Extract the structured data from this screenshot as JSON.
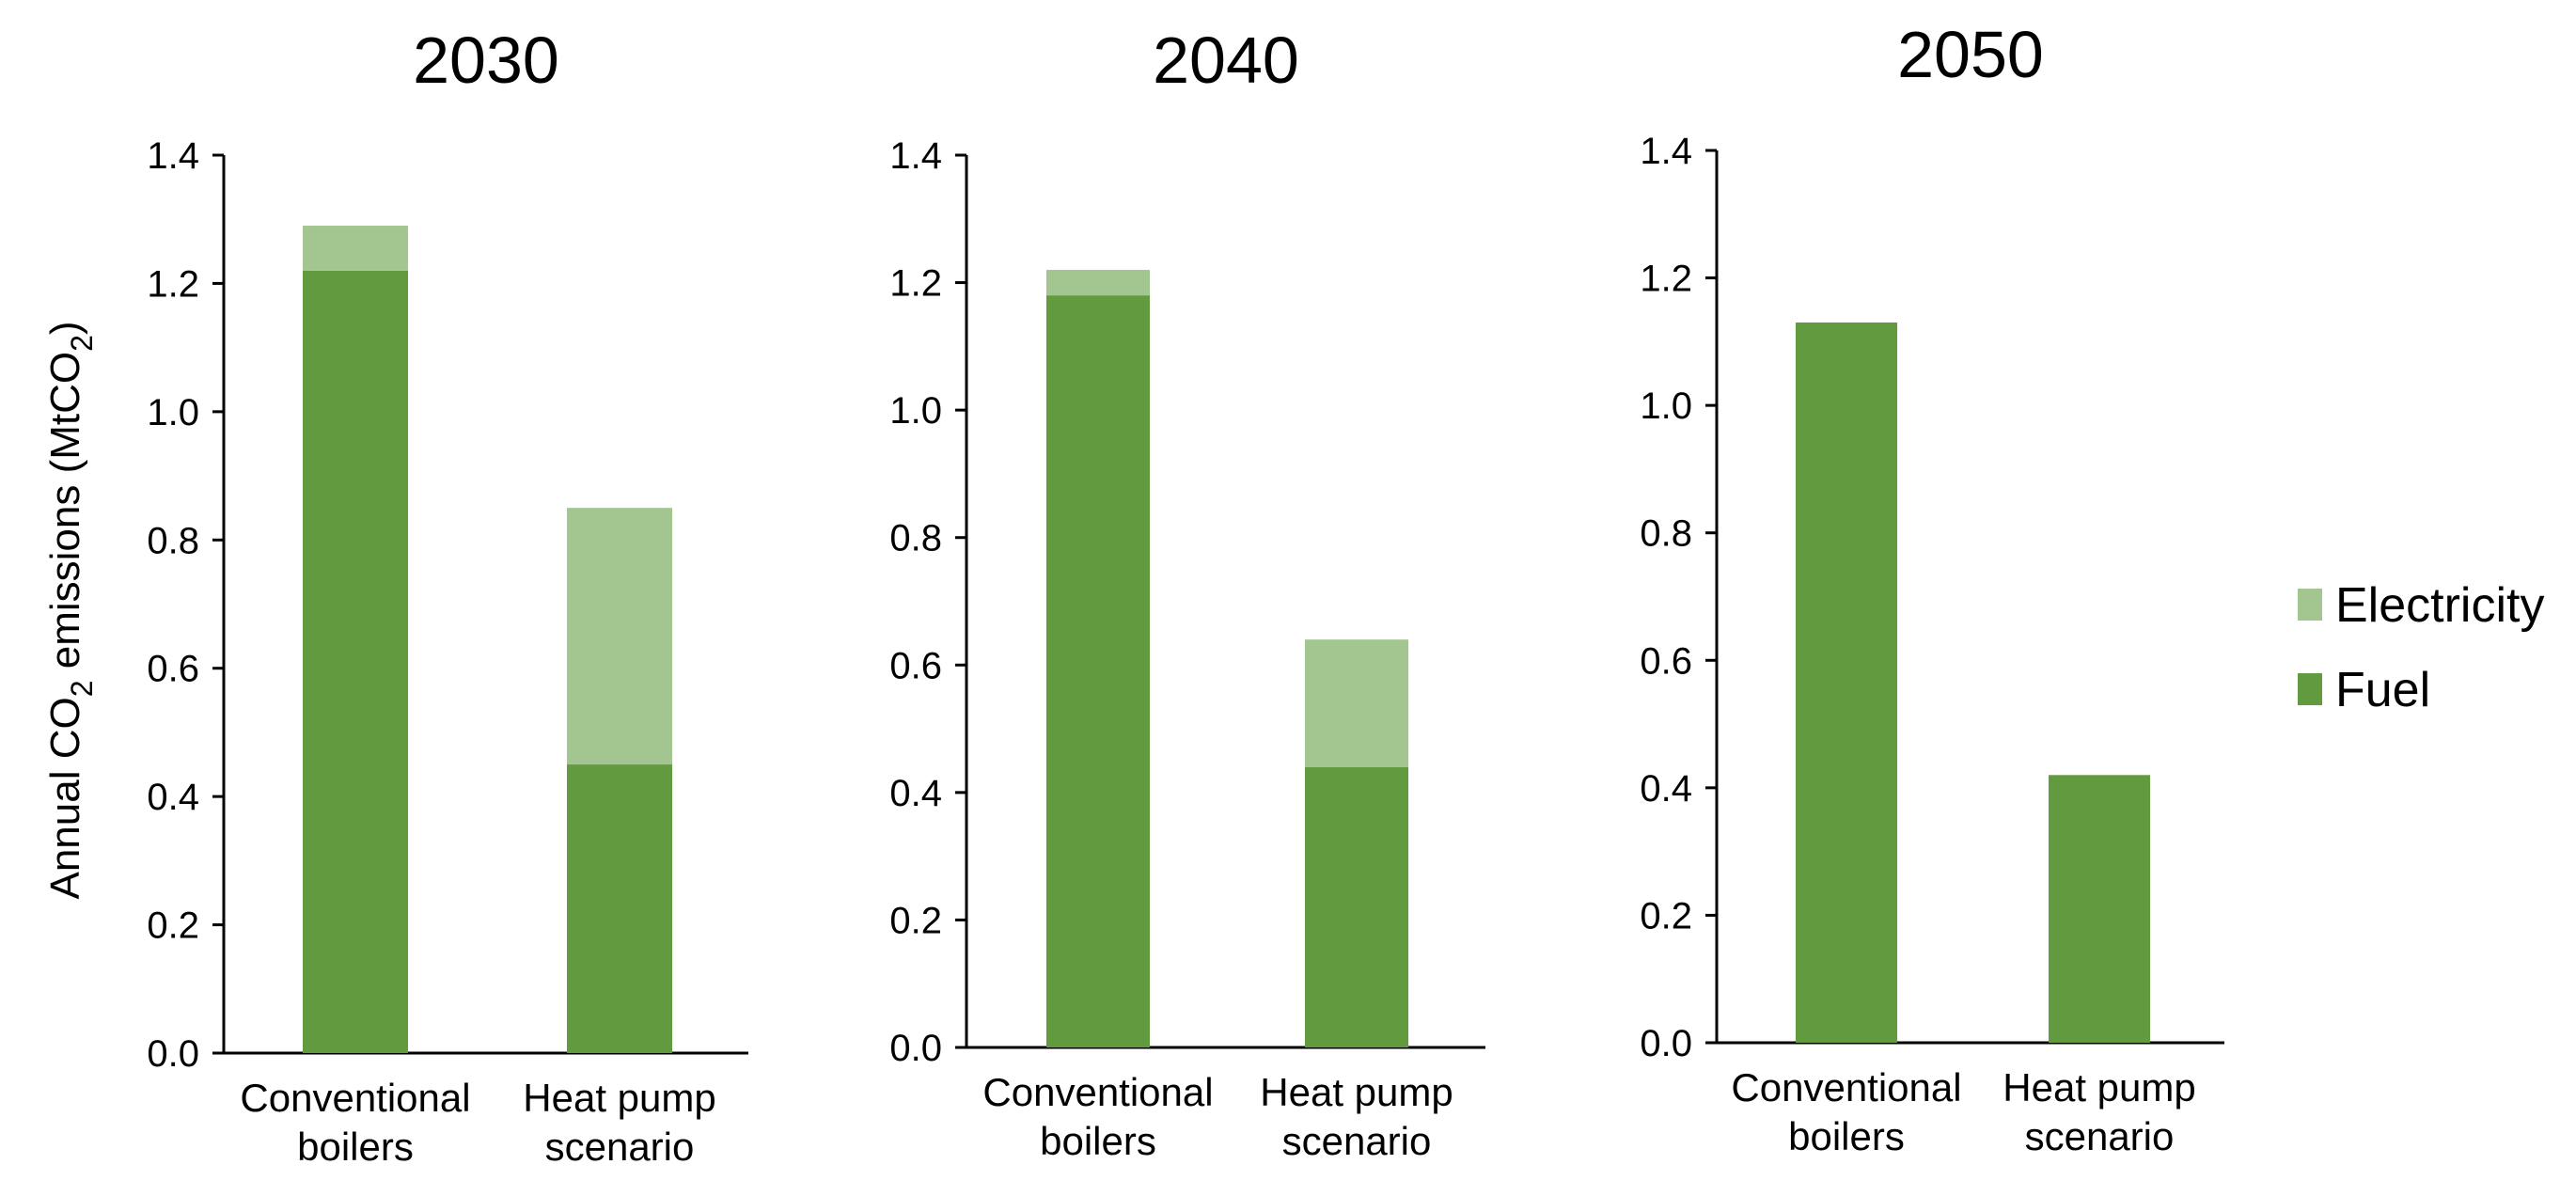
{
  "colors": {
    "fuel": "#629a3f",
    "electricity": "#a3c690",
    "axis": "#000000"
  },
  "y_axis_label": {
    "prefix": "Annual CO",
    "sub": "2",
    "middle": " emissions (MtCO",
    "sub2": "2",
    "suffix": ")"
  },
  "legend": {
    "electricity": "Electricity",
    "fuel": "Fuel"
  },
  "chart_data": [
    {
      "type": "bar",
      "stacked": true,
      "title": "2030",
      "categories": [
        [
          "Conventional",
          "boilers"
        ],
        [
          "Heat pump",
          "scenario"
        ]
      ],
      "ylim": [
        0,
        1.4
      ],
      "yticks": [
        "0.0",
        "0.2",
        "0.4",
        "0.6",
        "0.8",
        "1.0",
        "1.2",
        "1.4"
      ],
      "series": [
        {
          "name": "Fuel",
          "values": [
            1.22,
            0.45
          ]
        },
        {
          "name": "Electricity",
          "values": [
            0.07,
            0.4
          ]
        }
      ]
    },
    {
      "type": "bar",
      "stacked": true,
      "title": "2040",
      "categories": [
        [
          "Conventional",
          "boilers"
        ],
        [
          "Heat pump",
          "scenario"
        ]
      ],
      "ylim": [
        0,
        1.4
      ],
      "yticks": [
        "0.0",
        "0.2",
        "0.4",
        "0.6",
        "0.8",
        "1.0",
        "1.2",
        "1.4"
      ],
      "series": [
        {
          "name": "Fuel",
          "values": [
            1.18,
            0.44
          ]
        },
        {
          "name": "Electricity",
          "values": [
            0.04,
            0.2
          ]
        }
      ]
    },
    {
      "type": "bar",
      "stacked": true,
      "title": "2050",
      "categories": [
        [
          "Conventional",
          "boilers"
        ],
        [
          "Heat pump",
          "scenario"
        ]
      ],
      "ylim": [
        0,
        1.4
      ],
      "yticks": [
        "0.0",
        "0.2",
        "0.4",
        "0.6",
        "0.8",
        "1.0",
        "1.2",
        "1.4"
      ],
      "series": [
        {
          "name": "Fuel",
          "values": [
            1.13,
            0.42
          ]
        },
        {
          "name": "Electricity",
          "values": [
            0.0,
            0.0
          ]
        }
      ]
    }
  ]
}
